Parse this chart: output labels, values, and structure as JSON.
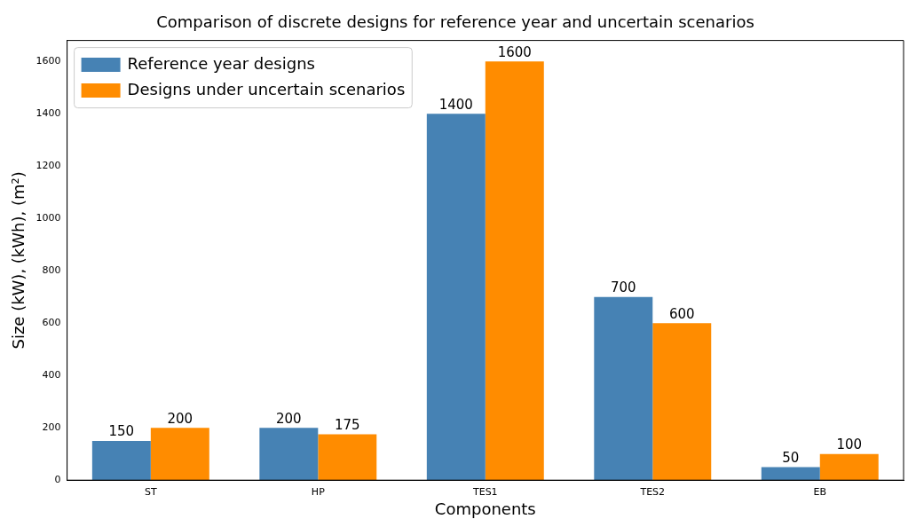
{
  "chart_data": {
    "type": "bar",
    "title": "Comparison of discrete designs for reference year and uncertain scenarios",
    "xlabel": "Components",
    "ylabel": "Size (kW), (kWh), (m²)",
    "categories": [
      "ST",
      "HP",
      "TES1",
      "TES2",
      "EB"
    ],
    "series": [
      {
        "name": "Reference year designs",
        "color": "#4682b4",
        "values": [
          150,
          200,
          1400,
          700,
          50
        ]
      },
      {
        "name": "Designs under uncertain scenarios",
        "color": "#ff8c00",
        "values": [
          200,
          175,
          1600,
          600,
          100
        ]
      }
    ],
    "ylim": [
      0,
      1680
    ],
    "yticks": [
      0,
      200,
      400,
      600,
      800,
      1000,
      1200,
      1400,
      1600
    ],
    "grid": false,
    "legend": "top left",
    "data_labels": true
  }
}
